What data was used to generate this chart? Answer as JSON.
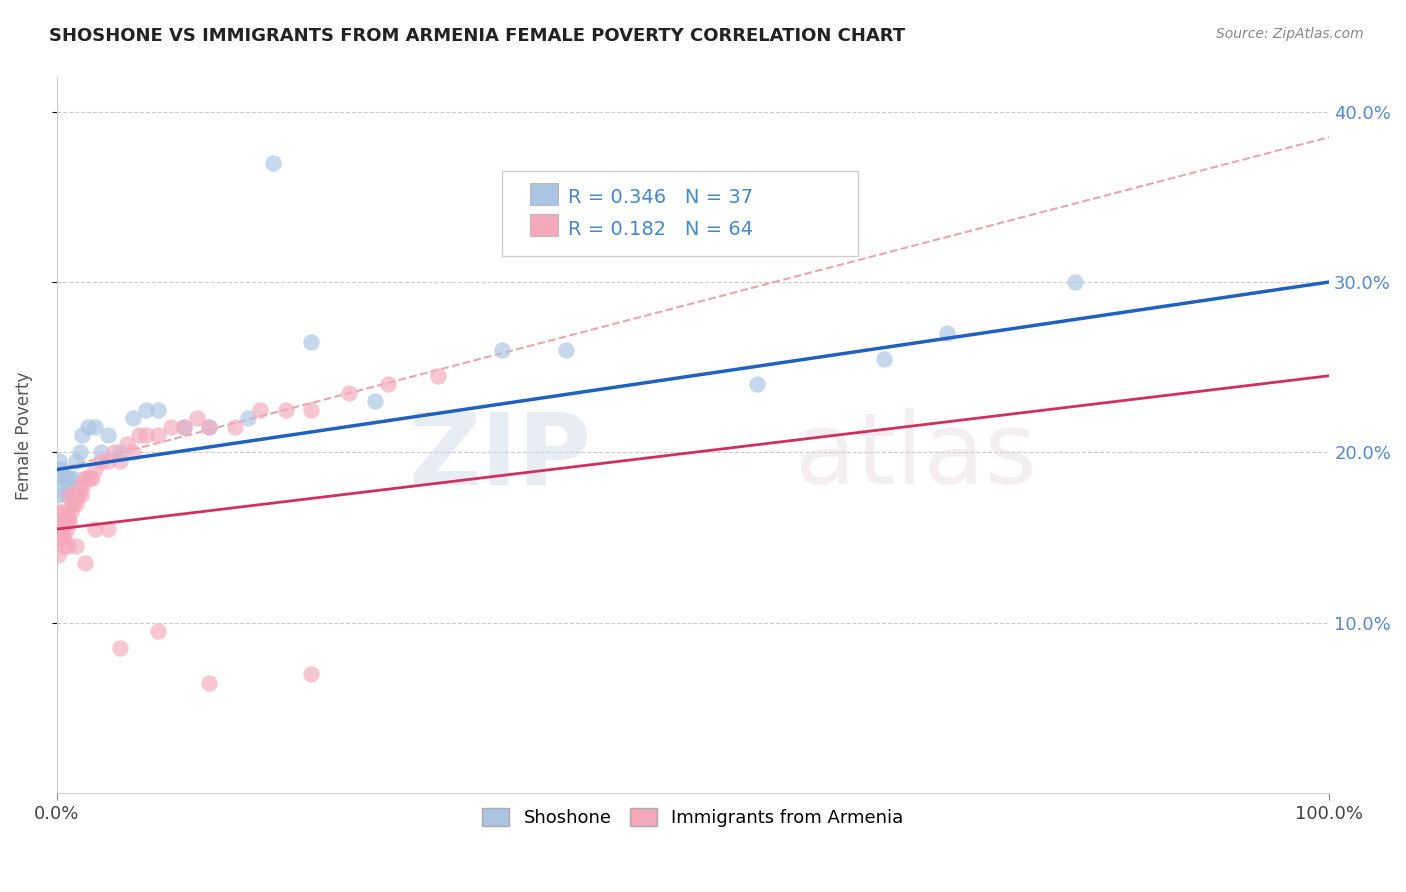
{
  "title": "SHOSHONE VS IMMIGRANTS FROM ARMENIA FEMALE POVERTY CORRELATION CHART",
  "source": "Source: ZipAtlas.com",
  "ylabel": "Female Poverty",
  "xlim": [
    0,
    1.0
  ],
  "ylim": [
    0,
    0.42
  ],
  "xtick_labels": [
    "0.0%",
    "100.0%"
  ],
  "ytick_labels": [
    "10.0%",
    "20.0%",
    "30.0%",
    "40.0%"
  ],
  "ytick_values": [
    0.1,
    0.2,
    0.3,
    0.4
  ],
  "legend_series1": "Shoshone",
  "legend_series2": "Immigrants from Armenia",
  "R1": 0.346,
  "N1": 37,
  "R2": 0.182,
  "N2": 64,
  "color1": "#aac4e2",
  "color2": "#f4a8bc",
  "line_color1": "#2060c0",
  "line_color2": "#d03060",
  "dash_color": "#e08090",
  "background_color": "#ffffff",
  "title_fontsize": 13,
  "blue_line": [
    0.0,
    0.19,
    1.0,
    0.3
  ],
  "red_line": [
    0.0,
    0.155,
    1.0,
    0.245
  ],
  "dash_line": [
    0.0,
    0.19,
    1.0,
    0.385
  ],
  "shoshone_x": [
    0.001,
    0.002,
    0.002,
    0.003,
    0.004,
    0.005,
    0.006,
    0.007,
    0.008,
    0.009,
    0.01,
    0.011,
    0.012,
    0.013,
    0.015,
    0.018,
    0.02,
    0.025,
    0.03,
    0.035,
    0.04,
    0.05,
    0.06,
    0.07,
    0.08,
    0.1,
    0.12,
    0.15,
    0.2,
    0.25,
    0.35,
    0.4,
    0.55,
    0.65,
    0.7,
    0.8,
    0.17
  ],
  "shoshone_y": [
    0.19,
    0.195,
    0.175,
    0.18,
    0.19,
    0.185,
    0.185,
    0.175,
    0.185,
    0.18,
    0.185,
    0.175,
    0.175,
    0.185,
    0.195,
    0.2,
    0.21,
    0.215,
    0.215,
    0.2,
    0.21,
    0.2,
    0.22,
    0.225,
    0.225,
    0.215,
    0.215,
    0.22,
    0.265,
    0.23,
    0.26,
    0.26,
    0.24,
    0.255,
    0.27,
    0.3,
    0.37
  ],
  "armenia_x": [
    0.001,
    0.001,
    0.002,
    0.002,
    0.003,
    0.003,
    0.004,
    0.004,
    0.005,
    0.005,
    0.006,
    0.006,
    0.007,
    0.008,
    0.008,
    0.009,
    0.01,
    0.011,
    0.012,
    0.013,
    0.014,
    0.015,
    0.016,
    0.017,
    0.018,
    0.019,
    0.02,
    0.022,
    0.024,
    0.026,
    0.028,
    0.03,
    0.035,
    0.04,
    0.045,
    0.05,
    0.055,
    0.06,
    0.065,
    0.07,
    0.08,
    0.09,
    0.1,
    0.11,
    0.12,
    0.14,
    0.16,
    0.18,
    0.2,
    0.23,
    0.26,
    0.3,
    0.01,
    0.007,
    0.006,
    0.009,
    0.015,
    0.022,
    0.03,
    0.04,
    0.05,
    0.08,
    0.12,
    0.2
  ],
  "armenia_y": [
    0.155,
    0.14,
    0.16,
    0.15,
    0.165,
    0.155,
    0.15,
    0.165,
    0.16,
    0.155,
    0.16,
    0.15,
    0.16,
    0.165,
    0.155,
    0.16,
    0.16,
    0.165,
    0.17,
    0.17,
    0.175,
    0.17,
    0.175,
    0.175,
    0.18,
    0.175,
    0.18,
    0.185,
    0.185,
    0.185,
    0.185,
    0.19,
    0.195,
    0.195,
    0.2,
    0.195,
    0.205,
    0.2,
    0.21,
    0.21,
    0.21,
    0.215,
    0.215,
    0.22,
    0.215,
    0.215,
    0.225,
    0.225,
    0.225,
    0.235,
    0.24,
    0.245,
    0.175,
    0.16,
    0.145,
    0.145,
    0.145,
    0.135,
    0.155,
    0.155,
    0.085,
    0.095,
    0.065,
    0.07
  ]
}
